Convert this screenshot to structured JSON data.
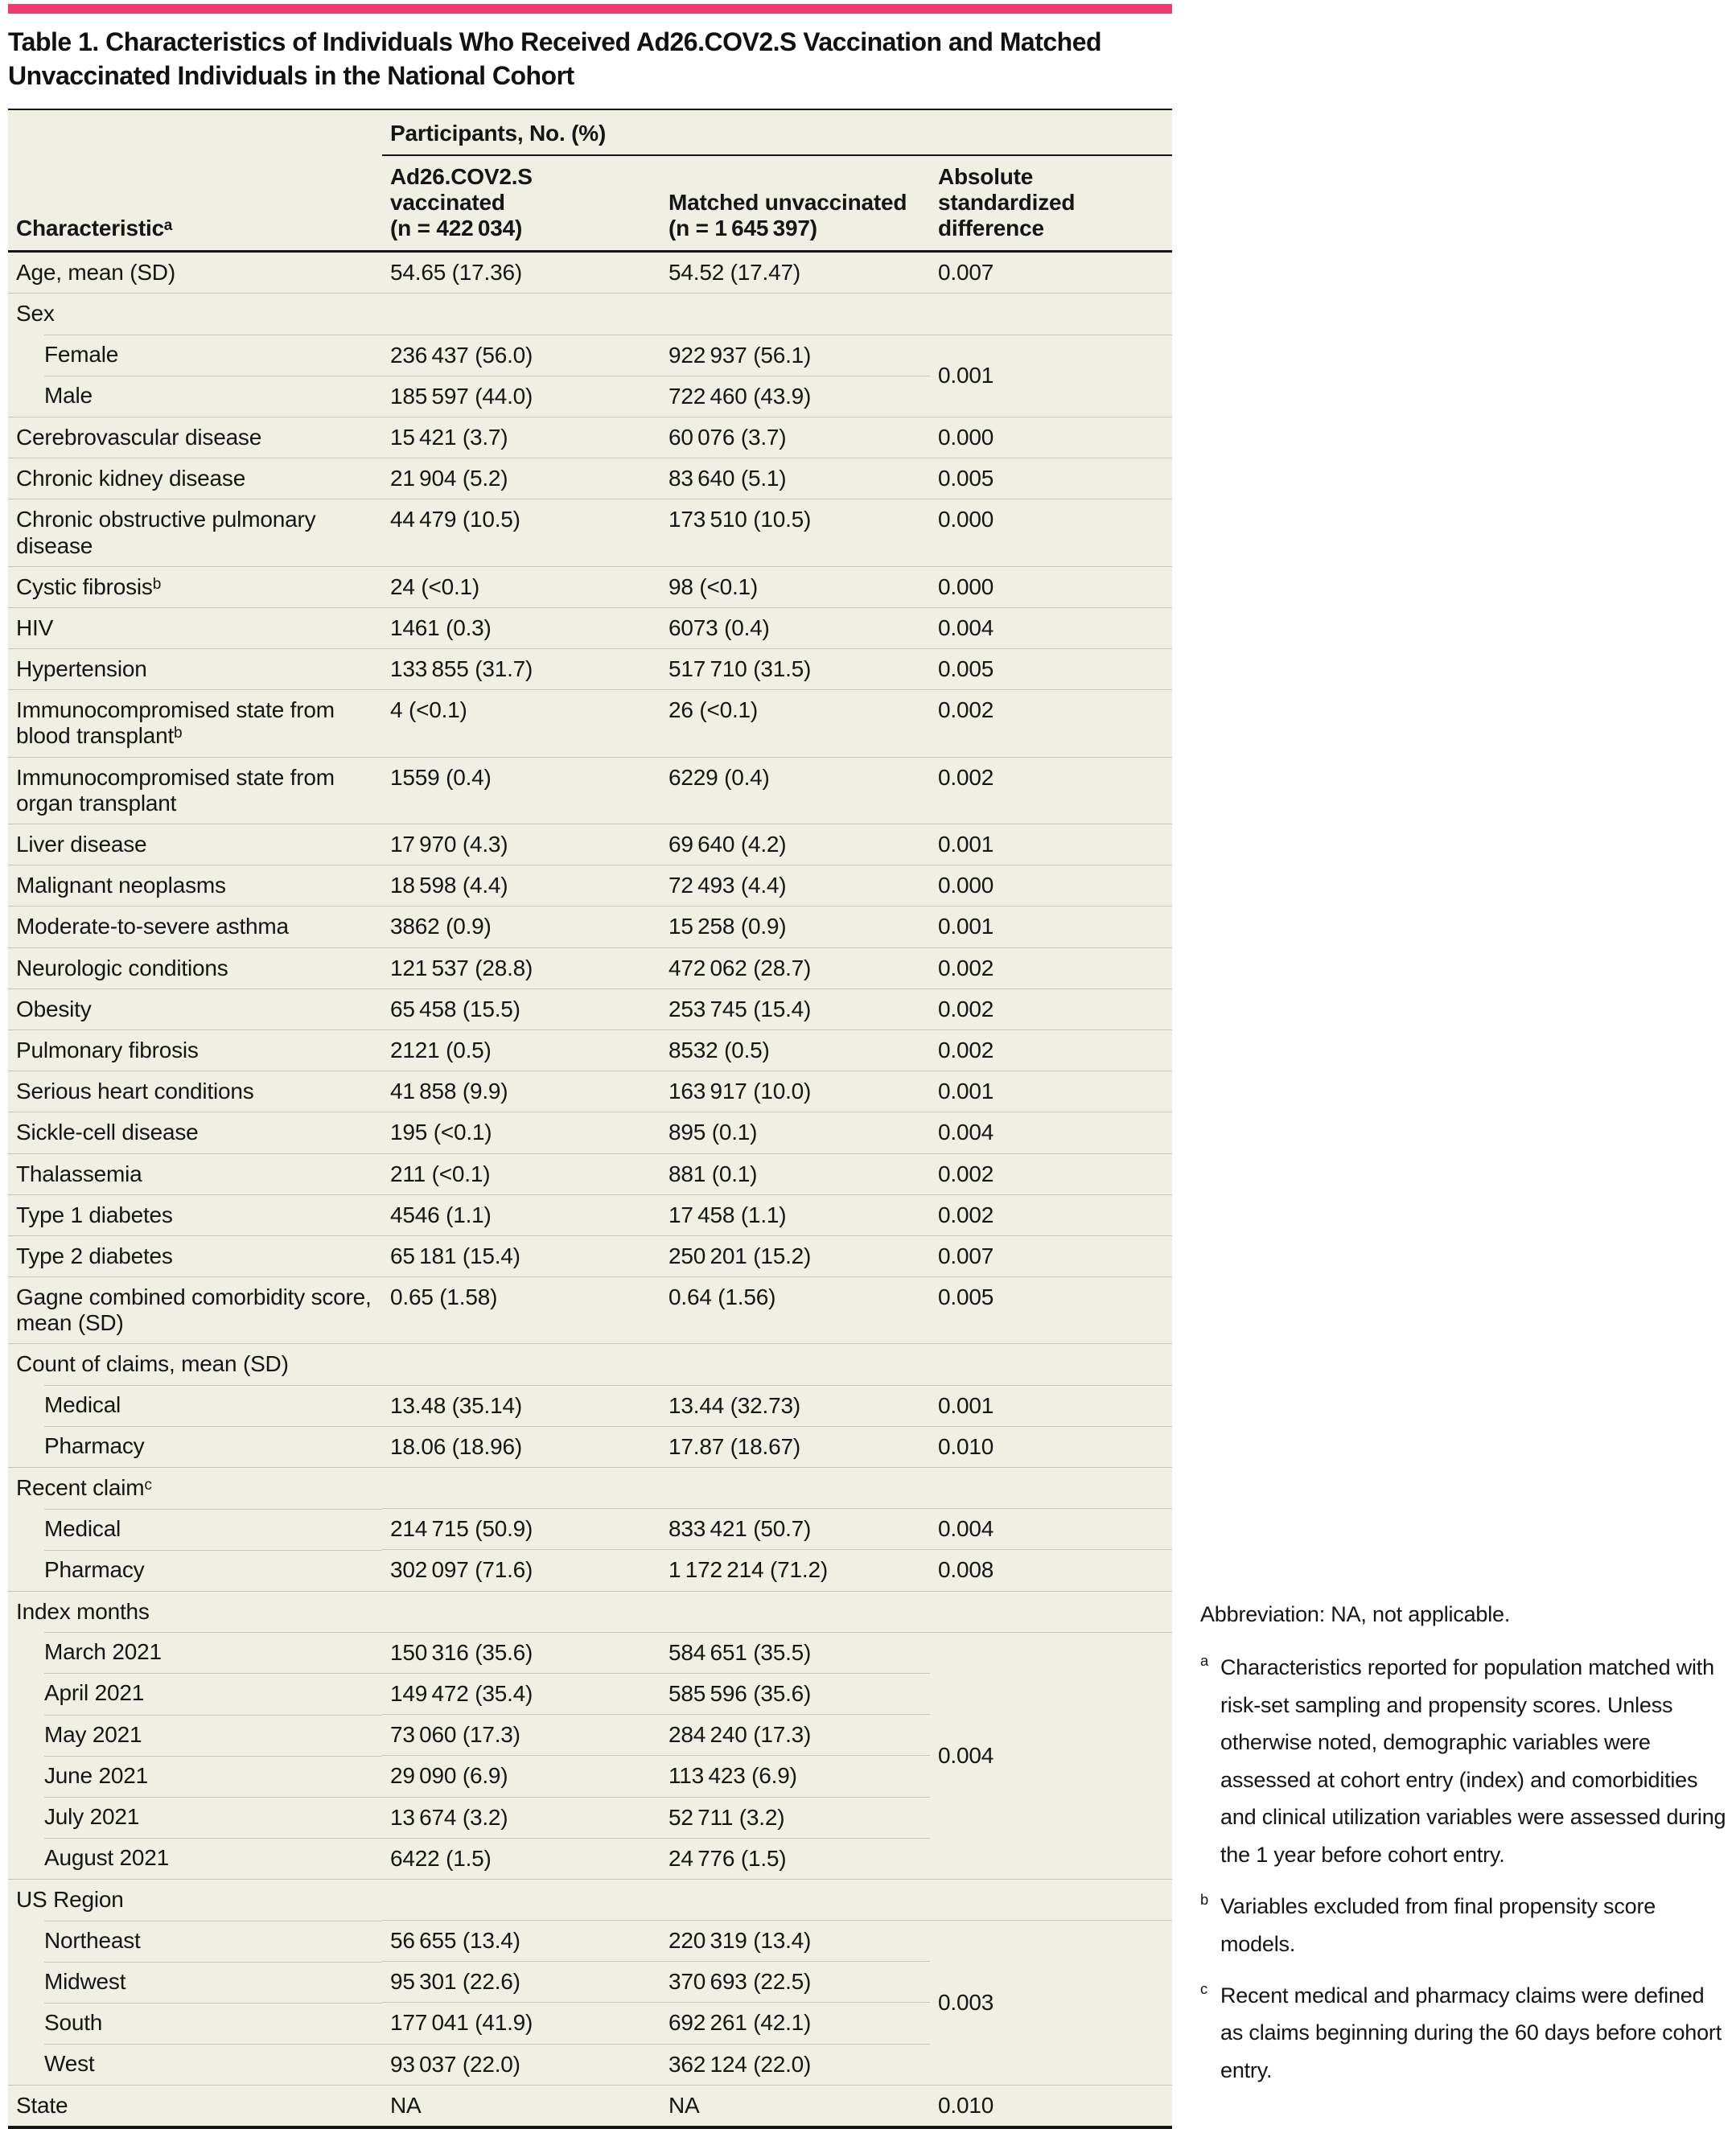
{
  "page": {
    "accent_bar_color": "#ee3a6c",
    "table_background": "#f0efe4",
    "divider_color": "#c7c5b5",
    "text_color": "#151515"
  },
  "title": "Table 1. Characteristics of Individuals Who Received Ad26.COV2.S Vaccination and Matched Unvaccinated Individuals in the National Cohort",
  "table": {
    "header": {
      "characteristic": "Characteristicᵃ",
      "participants_group": "Participants, No. (%)",
      "col_vaccinated": "Ad26.COV2.S vaccinated\n(n = 422 034)",
      "col_unvaccinated": "Matched unvaccinated\n(n = 1 645 397)",
      "col_asd": "Absolute standardized difference"
    },
    "rows": [
      {
        "type": "data",
        "label": "Age, mean (SD)",
        "v1": "54.65 (17.36)",
        "v2": "54.52 (17.47)",
        "asd": "0.007"
      },
      {
        "type": "group",
        "label": "Sex"
      },
      {
        "type": "sub",
        "label": "Female",
        "v1": "236 437 (56.0)",
        "v2": "922 937 (56.1)",
        "asd": "0.001",
        "asd_rowspan": 2
      },
      {
        "type": "sub",
        "label": "Male",
        "v1": "185 597 (44.0)",
        "v2": "722 460 (43.9)"
      },
      {
        "type": "data",
        "label": "Cerebrovascular disease",
        "v1": "15 421 (3.7)",
        "v2": "60 076 (3.7)",
        "asd": "0.000"
      },
      {
        "type": "data",
        "label": "Chronic kidney disease",
        "v1": "21 904 (5.2)",
        "v2": "83 640 (5.1)",
        "asd": "0.005"
      },
      {
        "type": "data",
        "label": "Chronic obstructive pulmonary disease",
        "v1": "44 479 (10.5)",
        "v2": "173 510 (10.5)",
        "asd": "0.000"
      },
      {
        "type": "data",
        "label": "Cystic fibrosisᵇ",
        "v1": "24 (<0.1)",
        "v2": "98 (<0.1)",
        "asd": "0.000"
      },
      {
        "type": "data",
        "label": "HIV",
        "v1": "1461 (0.3)",
        "v2": "6073 (0.4)",
        "asd": "0.004"
      },
      {
        "type": "data",
        "label": "Hypertension",
        "v1": "133 855 (31.7)",
        "v2": "517 710 (31.5)",
        "asd": "0.005"
      },
      {
        "type": "data",
        "label": "Immunocompromised state from blood transplantᵇ",
        "v1": "4 (<0.1)",
        "v2": "26 (<0.1)",
        "asd": "0.002"
      },
      {
        "type": "data",
        "label": "Immunocompromised state from organ transplant",
        "v1": "1559 (0.4)",
        "v2": "6229 (0.4)",
        "asd": "0.002"
      },
      {
        "type": "data",
        "label": "Liver disease",
        "v1": "17 970 (4.3)",
        "v2": "69 640 (4.2)",
        "asd": "0.001"
      },
      {
        "type": "data",
        "label": "Malignant neoplasms",
        "v1": "18 598 (4.4)",
        "v2": "72 493 (4.4)",
        "asd": "0.000"
      },
      {
        "type": "data",
        "label": "Moderate-to-severe asthma",
        "v1": "3862 (0.9)",
        "v2": "15 258 (0.9)",
        "asd": "0.001"
      },
      {
        "type": "data",
        "label": "Neurologic conditions",
        "v1": "121 537 (28.8)",
        "v2": "472 062 (28.7)",
        "asd": "0.002"
      },
      {
        "type": "data",
        "label": "Obesity",
        "v1": "65 458 (15.5)",
        "v2": "253 745 (15.4)",
        "asd": "0.002"
      },
      {
        "type": "data",
        "label": "Pulmonary fibrosis",
        "v1": "2121 (0.5)",
        "v2": "8532 (0.5)",
        "asd": "0.002"
      },
      {
        "type": "data",
        "label": "Serious heart conditions",
        "v1": "41 858 (9.9)",
        "v2": "163 917 (10.0)",
        "asd": "0.001"
      },
      {
        "type": "data",
        "label": "Sickle-cell disease",
        "v1": "195 (<0.1)",
        "v2": "895 (0.1)",
        "asd": "0.004"
      },
      {
        "type": "data",
        "label": "Thalassemia",
        "v1": "211 (<0.1)",
        "v2": "881 (0.1)",
        "asd": "0.002"
      },
      {
        "type": "data",
        "label": "Type 1 diabetes",
        "v1": "4546 (1.1)",
        "v2": "17 458 (1.1)",
        "asd": "0.002"
      },
      {
        "type": "data",
        "label": "Type 2 diabetes",
        "v1": "65 181 (15.4)",
        "v2": "250 201 (15.2)",
        "asd": "0.007"
      },
      {
        "type": "data",
        "label": "Gagne combined comorbidity score, mean (SD)",
        "v1": "0.65 (1.58)",
        "v2": "0.64 (1.56)",
        "asd": "0.005"
      },
      {
        "type": "group",
        "label": "Count of claims, mean (SD)"
      },
      {
        "type": "sub",
        "label": "Medical",
        "v1": "13.48 (35.14)",
        "v2": "13.44 (32.73)",
        "asd": "0.001"
      },
      {
        "type": "sub",
        "label": "Pharmacy",
        "v1": "18.06 (18.96)",
        "v2": "17.87 (18.67)",
        "asd": "0.010"
      },
      {
        "type": "group",
        "label": "Recent claimᶜ"
      },
      {
        "type": "sub",
        "label": "Medical",
        "v1": "214 715 (50.9)",
        "v2": "833 421 (50.7)",
        "asd": "0.004"
      },
      {
        "type": "sub",
        "label": "Pharmacy",
        "v1": "302 097 (71.6)",
        "v2": "1 172 214 (71.2)",
        "asd": "0.008"
      },
      {
        "type": "group",
        "label": "Index months"
      },
      {
        "type": "sub",
        "label": "March 2021",
        "v1": "150 316 (35.6)",
        "v2": "584 651 (35.5)",
        "asd": "0.004",
        "asd_rowspan": 6
      },
      {
        "type": "sub",
        "label": "April 2021",
        "v1": "149 472 (35.4)",
        "v2": "585 596 (35.6)"
      },
      {
        "type": "sub",
        "label": "May 2021",
        "v1": "73 060 (17.3)",
        "v2": "284 240 (17.3)"
      },
      {
        "type": "sub",
        "label": "June 2021",
        "v1": "29 090 (6.9)",
        "v2": "113 423 (6.9)"
      },
      {
        "type": "sub",
        "label": "July 2021",
        "v1": "13 674 (3.2)",
        "v2": "52 711 (3.2)"
      },
      {
        "type": "sub",
        "label": "August 2021",
        "v1": "6422 (1.5)",
        "v2": "24 776 (1.5)"
      },
      {
        "type": "group",
        "label": "US Region"
      },
      {
        "type": "sub",
        "label": "Northeast",
        "v1": "56 655 (13.4)",
        "v2": "220 319 (13.4)",
        "asd": "0.003",
        "asd_rowspan": 4
      },
      {
        "type": "sub",
        "label": "Midwest",
        "v1": "95 301 (22.6)",
        "v2": "370 693 (22.5)"
      },
      {
        "type": "sub",
        "label": "South",
        "v1": "177 041 (41.9)",
        "v2": "692 261 (42.1)"
      },
      {
        "type": "sub",
        "label": "West",
        "v1": "93 037 (22.0)",
        "v2": "362 124 (22.0)"
      },
      {
        "type": "data",
        "label": "State",
        "v1": "NA",
        "v2": "NA",
        "asd": "0.010"
      }
    ]
  },
  "footnotes": {
    "abbreviation": "Abbreviation: NA, not applicable.",
    "items": [
      {
        "marker": "a",
        "text": "Characteristics reported for population matched with risk-set sampling and propensity scores. Unless otherwise noted, demographic variables were assessed at cohort entry (index) and comorbidities and clinical utilization variables were assessed during the 1 year before cohort entry."
      },
      {
        "marker": "b",
        "text": "Variables excluded from final propensity score models."
      },
      {
        "marker": "c",
        "text": "Recent medical and pharmacy claims were defined as claims beginning during the 60 days before cohort entry."
      }
    ]
  }
}
